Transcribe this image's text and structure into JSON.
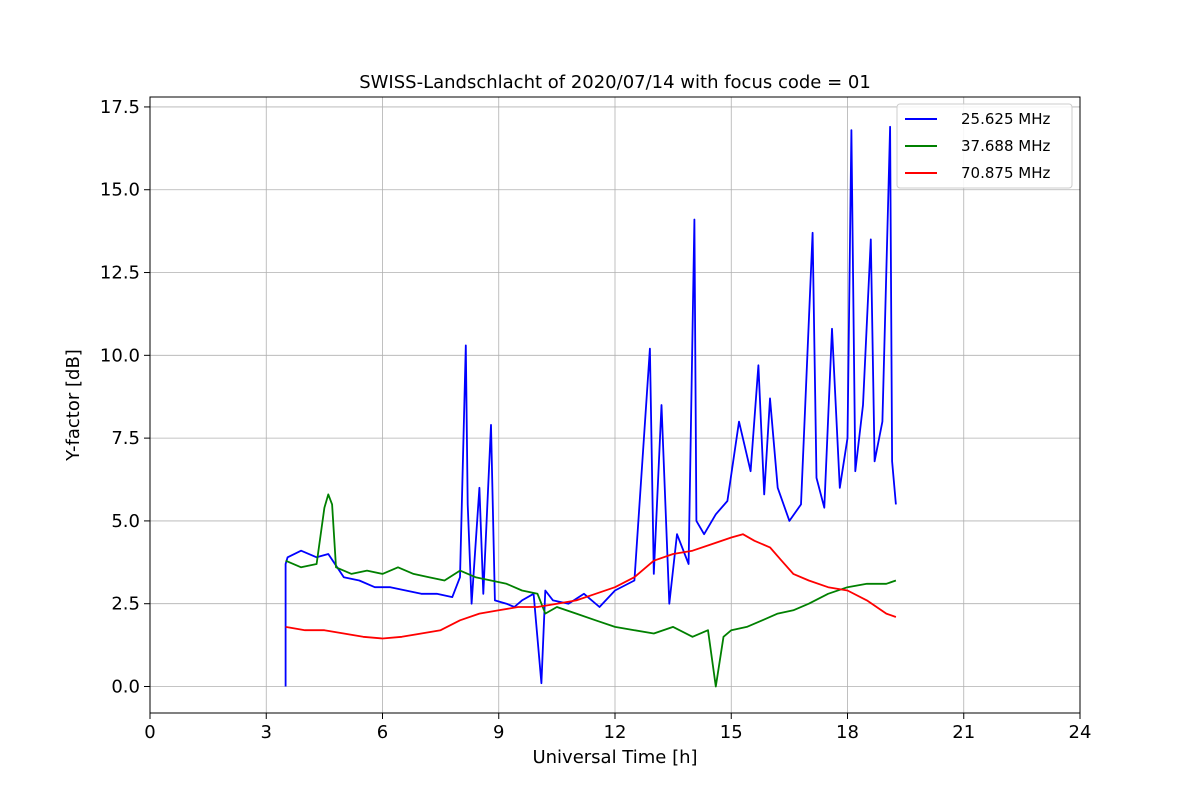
{
  "chart_data": {
    "type": "line",
    "title": "SWISS-Landschlacht of 2020/07/14 with focus code = 01",
    "xlabel": "Universal Time [h]",
    "ylabel": "Y-factor [dB]",
    "xlim": [
      0,
      24
    ],
    "ylim": [
      -0.8,
      17.8
    ],
    "xticks": [
      0,
      3,
      6,
      9,
      12,
      15,
      18,
      21,
      24
    ],
    "xtick_labels": [
      "0",
      "3",
      "6",
      "9",
      "12",
      "15",
      "18",
      "21",
      "24"
    ],
    "yticks": [
      0,
      2.5,
      5,
      7.5,
      10,
      12.5,
      15,
      17.5
    ],
    "ytick_labels": [
      "0.0",
      "2.5",
      "5.0",
      "7.5",
      "10.0",
      "12.5",
      "15.0",
      "17.5"
    ],
    "grid": true,
    "legend_position": "top-right",
    "series": [
      {
        "name": "25.625 MHz",
        "color": "#0000ff",
        "x": [
          3.5,
          3.5,
          3.55,
          3.9,
          4.3,
          4.6,
          5.0,
          5.4,
          5.8,
          6.2,
          6.6,
          7.0,
          7.4,
          7.8,
          8.0,
          8.15,
          8.2,
          8.3,
          8.5,
          8.6,
          8.8,
          8.9,
          9.2,
          9.4,
          9.6,
          9.9,
          10.1,
          10.2,
          10.4,
          10.8,
          11.2,
          11.6,
          12.0,
          12.5,
          12.9,
          13.0,
          13.2,
          13.4,
          13.6,
          13.9,
          14.05,
          14.1,
          14.3,
          14.6,
          14.9,
          15.2,
          15.5,
          15.7,
          15.85,
          16.0,
          16.2,
          16.5,
          16.8,
          17.1,
          17.2,
          17.4,
          17.6,
          17.8,
          18.0,
          18.1,
          18.2,
          18.4,
          18.6,
          18.7,
          18.9,
          19.1,
          19.15,
          19.25
        ],
        "values": [
          0.0,
          3.7,
          3.9,
          4.1,
          3.9,
          4.0,
          3.3,
          3.2,
          3.0,
          3.0,
          2.9,
          2.8,
          2.8,
          2.7,
          3.3,
          10.3,
          5.5,
          2.5,
          6.0,
          2.8,
          7.9,
          2.6,
          2.5,
          2.4,
          2.6,
          2.8,
          0.1,
          2.9,
          2.6,
          2.5,
          2.8,
          2.4,
          2.9,
          3.2,
          10.2,
          3.4,
          8.5,
          2.5,
          4.6,
          3.7,
          14.1,
          5.0,
          4.6,
          5.2,
          5.6,
          8.0,
          6.5,
          9.7,
          5.8,
          8.7,
          6.0,
          5.0,
          5.5,
          13.7,
          6.3,
          5.4,
          10.8,
          6.0,
          7.5,
          16.8,
          6.5,
          8.5,
          13.5,
          6.8,
          8.0,
          16.9,
          6.8,
          5.5
        ]
      },
      {
        "name": "37.688 MHz",
        "color": "#008000",
        "x": [
          3.5,
          3.9,
          4.3,
          4.5,
          4.6,
          4.7,
          4.8,
          5.2,
          5.6,
          6.0,
          6.4,
          6.8,
          7.2,
          7.6,
          8.0,
          8.4,
          8.8,
          9.2,
          9.6,
          10.0,
          10.2,
          10.5,
          11.0,
          11.5,
          12.0,
          12.5,
          13.0,
          13.5,
          14.0,
          14.4,
          14.6,
          14.8,
          15.0,
          15.4,
          15.8,
          16.2,
          16.6,
          17.0,
          17.5,
          18.0,
          18.5,
          19.0,
          19.25
        ],
        "values": [
          3.8,
          3.6,
          3.7,
          5.4,
          5.8,
          5.5,
          3.6,
          3.4,
          3.5,
          3.4,
          3.6,
          3.4,
          3.3,
          3.2,
          3.5,
          3.3,
          3.2,
          3.1,
          2.9,
          2.8,
          2.2,
          2.4,
          2.2,
          2.0,
          1.8,
          1.7,
          1.6,
          1.8,
          1.5,
          1.7,
          0.0,
          1.5,
          1.7,
          1.8,
          2.0,
          2.2,
          2.3,
          2.5,
          2.8,
          3.0,
          3.1,
          3.1,
          3.2
        ]
      },
      {
        "name": "70.875 MHz",
        "color": "#ff0000",
        "x": [
          3.5,
          4.0,
          4.5,
          5.0,
          5.5,
          6.0,
          6.5,
          7.0,
          7.5,
          8.0,
          8.5,
          9.0,
          9.5,
          10.0,
          10.5,
          11.0,
          11.5,
          12.0,
          12.5,
          13.0,
          13.5,
          14.0,
          14.5,
          15.0,
          15.3,
          15.6,
          16.0,
          16.3,
          16.6,
          17.0,
          17.5,
          18.0,
          18.5,
          19.0,
          19.25
        ],
        "values": [
          1.8,
          1.7,
          1.7,
          1.6,
          1.5,
          1.45,
          1.5,
          1.6,
          1.7,
          2.0,
          2.2,
          2.3,
          2.4,
          2.4,
          2.5,
          2.6,
          2.8,
          3.0,
          3.3,
          3.8,
          4.0,
          4.1,
          4.3,
          4.5,
          4.6,
          4.4,
          4.2,
          3.8,
          3.4,
          3.2,
          3.0,
          2.9,
          2.6,
          2.2,
          2.1
        ]
      }
    ]
  }
}
